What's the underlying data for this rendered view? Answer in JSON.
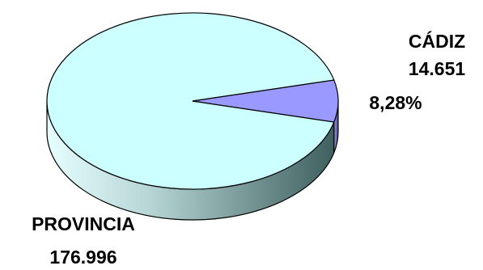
{
  "chart_data": {
    "type": "pie",
    "style": "3d",
    "slices": [
      {
        "label": "PROVINCIA",
        "value_text": "176.996",
        "value": 176996,
        "color": "#ccffff",
        "side_color": "#8fb4b4"
      },
      {
        "label": "CÁDIZ",
        "value_text": "14.651",
        "value": 14651,
        "percent_text": "8,28%",
        "color": "#9999ff",
        "side_color": "#6b6bb3"
      }
    ]
  }
}
